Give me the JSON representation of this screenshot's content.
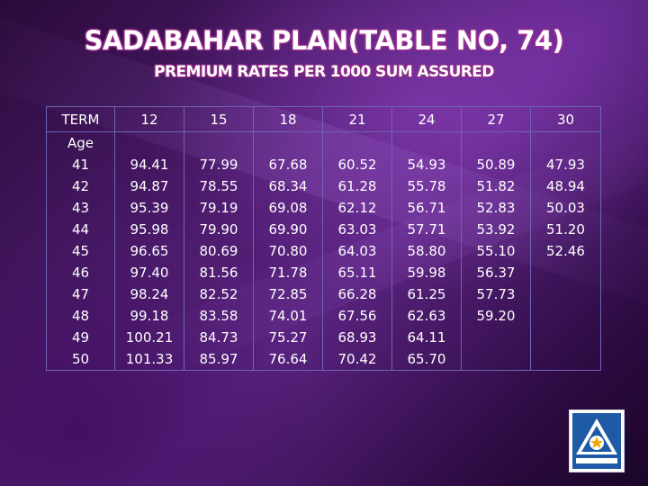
{
  "title": "SADABAHAR PLAN(TABLE NO, 74)",
  "subtitle": "PREMIUM RATES PER 1000 SUM ASSURED",
  "table": {
    "term_label": "TERM",
    "age_label": "Age",
    "terms": [
      "12",
      "15",
      "18",
      "21",
      "24",
      "27",
      "30"
    ],
    "ages": [
      "41",
      "42",
      "43",
      "44",
      "45",
      "46",
      "47",
      "48",
      "49",
      "50"
    ],
    "columns": [
      [
        "94.41",
        "94.87",
        "95.39",
        "95.98",
        "96.65",
        "97.40",
        "98.24",
        "99.18",
        "100.21",
        "101.33"
      ],
      [
        "77.99",
        "78.55",
        "79.19",
        "79.90",
        "80.69",
        "81.56",
        "82.52",
        "83.58",
        "84.73",
        "85.97"
      ],
      [
        "67.68",
        "68.34",
        "69.08",
        "69.90",
        "70.80",
        "71.78",
        "72.85",
        "74.01",
        "75.27",
        "76.64"
      ],
      [
        "60.52",
        "61.28",
        "62.12",
        "63.03",
        "64.03",
        "65.11",
        "66.28",
        "67.56",
        "68.93",
        "70.42"
      ],
      [
        "54.93",
        "55.78",
        "56.71",
        "57.71",
        "58.80",
        "59.98",
        "61.25",
        "62.63",
        "64.11",
        "65.70"
      ],
      [
        "50.89",
        "51.82",
        "52.83",
        "53.92",
        "55.10",
        "56.37",
        "57.73",
        "59.20"
      ],
      [
        "47.93",
        "48.94",
        "50.03",
        "51.20",
        "52.46"
      ]
    ]
  },
  "logo": {
    "icon": "insurance-logo-icon",
    "colors": {
      "primary": "#1f5aa6",
      "accent": "#f2a900"
    }
  }
}
